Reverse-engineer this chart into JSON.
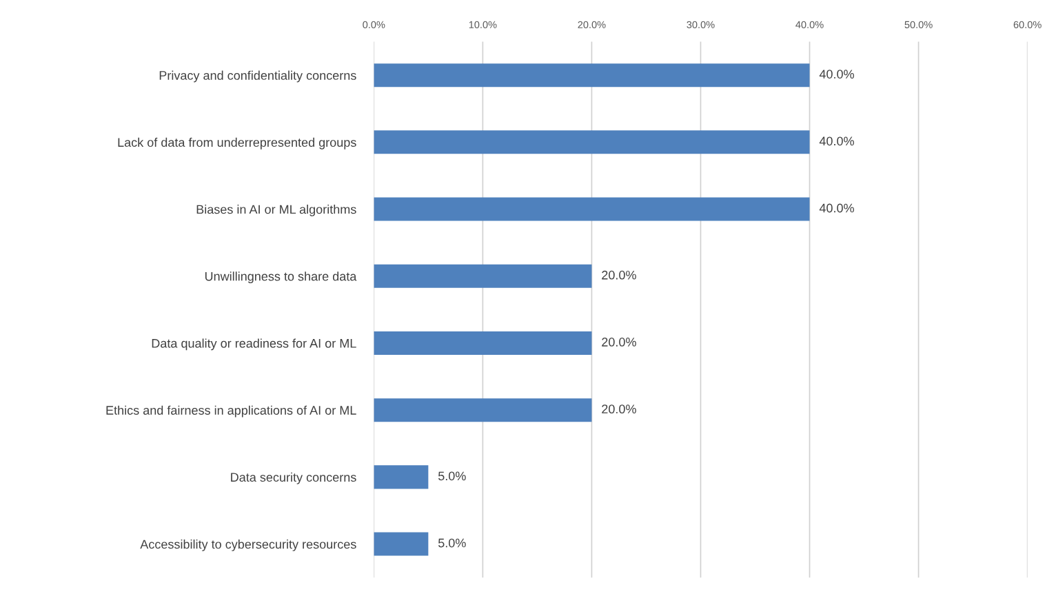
{
  "chart_data": {
    "type": "bar",
    "orientation": "horizontal",
    "categories": [
      "Privacy and confidentiality concerns",
      "Lack of data from underrepresented groups",
      "Biases in AI or ML algorithms",
      "Unwillingness to share data",
      "Data quality or readiness for AI or ML",
      "Ethics and fairness in applications of AI or ML",
      "Data security concerns",
      "Accessibility to cybersecurity resources"
    ],
    "values": [
      40,
      40,
      40,
      20,
      20,
      20,
      5,
      5
    ],
    "value_labels": [
      "40.0%",
      "40.0%",
      "40.0%",
      "20.0%",
      "20.0%",
      "20.0%",
      "5.0%",
      "5.0%"
    ],
    "color": "#4f81bd",
    "xlim": [
      0,
      60
    ],
    "xticks": [
      {
        "value": 0,
        "label": "0.0%"
      },
      {
        "value": 10,
        "label": "10.0%"
      },
      {
        "value": 20,
        "label": "20.0%"
      },
      {
        "value": 30,
        "label": "30.0%"
      },
      {
        "value": 40,
        "label": "40.0%"
      },
      {
        "value": 50,
        "label": "50.0%"
      },
      {
        "value": 60,
        "label": "60.0%"
      }
    ],
    "grid": "x",
    "legend": false
  }
}
